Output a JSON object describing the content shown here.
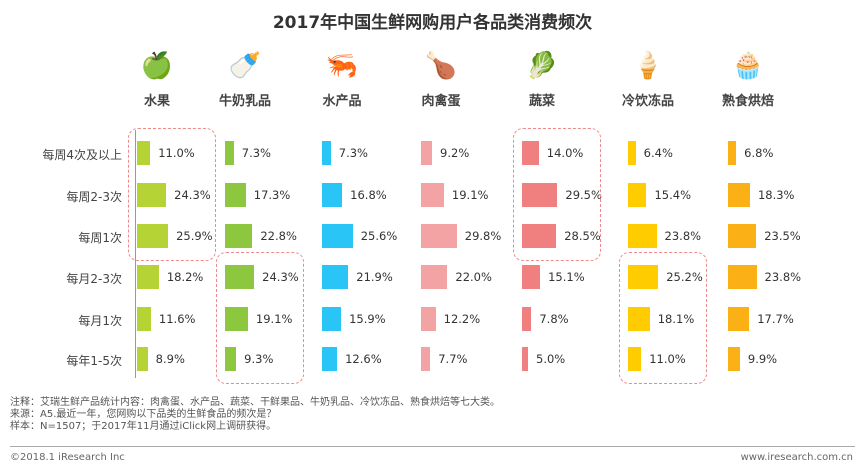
{
  "chart_data": {
    "type": "bar",
    "title": "2017年中国生鲜网购用户各品类消费频次",
    "categories": [
      "每周4次及以上",
      "每周2-3次",
      "每周1次",
      "每月2-3次",
      "每月1次",
      "每年1-5次"
    ],
    "series": [
      {
        "name": "水果",
        "icon": "apple-icon",
        "color": "#b5d334",
        "values": [
          11.0,
          24.3,
          25.9,
          18.2,
          11.6,
          8.9
        ]
      },
      {
        "name": "牛奶乳品",
        "icon": "milk-bottle-icon",
        "color": "#8dc63f",
        "values": [
          7.3,
          17.3,
          22.8,
          24.3,
          19.1,
          9.3
        ]
      },
      {
        "name": "水产品",
        "icon": "shrimp-icon",
        "color": "#29c5f6",
        "values": [
          7.3,
          16.8,
          25.6,
          21.9,
          15.9,
          12.6
        ]
      },
      {
        "name": "肉禽蛋",
        "icon": "roast-chicken-icon",
        "color": "#f4a3a5",
        "values": [
          9.2,
          19.1,
          29.8,
          22.0,
          12.2,
          7.7
        ]
      },
      {
        "name": "蔬菜",
        "icon": "vegetable-icon",
        "color": "#f08080",
        "values": [
          14.0,
          29.5,
          28.5,
          15.1,
          7.8,
          5.0
        ]
      },
      {
        "name": "冷饮冻品",
        "icon": "popsicle-icon",
        "color": "#ffcc00",
        "values": [
          6.4,
          15.4,
          23.8,
          25.2,
          18.1,
          11.0
        ]
      },
      {
        "name": "熟食烘焙",
        "icon": "cupcake-icon",
        "color": "#fbb016",
        "values": [
          6.8,
          18.3,
          23.5,
          23.8,
          17.7,
          9.9
        ]
      }
    ],
    "highlights": [
      {
        "series": "水果",
        "rows": [
          0,
          2
        ]
      },
      {
        "series": "牛奶乳品",
        "rows": [
          3,
          5
        ]
      },
      {
        "series": "蔬菜",
        "rows": [
          0,
          2
        ]
      },
      {
        "series": "冷饮冻品",
        "rows": [
          3,
          5
        ]
      }
    ],
    "unit": "%"
  },
  "notes": [
    "注释：艾瑞生鲜产品统计内容：肉禽蛋、水产品、蔬菜、干鲜果品、牛奶乳品、冷饮冻品、熟食烘焙等七大类。",
    "来源：A5.最近一年，您网购以下品类的生鲜食品的频次是？",
    "样本：N=1507；于2017年11月通过iClick网上调研获得。"
  ],
  "footer": {
    "left": "©2018.1 iResearch Inc",
    "right": "www.iresearch.com.cn"
  }
}
